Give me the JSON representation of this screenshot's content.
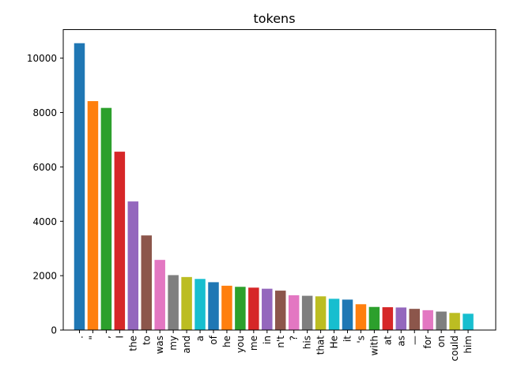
{
  "chart_data": {
    "type": "bar",
    "title": "tokens",
    "xlabel": "",
    "ylabel": "",
    "categories": [
      ".",
      "\"",
      ",",
      "I",
      "the",
      "to",
      "was",
      "my",
      "and",
      "a",
      "of",
      "he",
      "you",
      "me",
      "in",
      "n't",
      "?",
      "his",
      "that",
      "He",
      "it",
      "'s",
      "with",
      "at",
      "as",
      "—",
      "for",
      "on",
      "could",
      "him"
    ],
    "values": [
      10550,
      8420,
      8170,
      6560,
      4730,
      3480,
      2580,
      2020,
      1950,
      1880,
      1760,
      1630,
      1590,
      1560,
      1520,
      1450,
      1280,
      1260,
      1240,
      1150,
      1120,
      950,
      850,
      840,
      830,
      780,
      730,
      680,
      630,
      600
    ],
    "ylim": [
      0,
      11050
    ],
    "yticks": [
      0,
      2000,
      4000,
      6000,
      8000,
      10000
    ],
    "ytick_labels": [
      "0",
      "2000",
      "4000",
      "6000",
      "8000",
      "10000"
    ],
    "grid": false,
    "colors": [
      "#1f77b4",
      "#ff7f0e",
      "#2ca02c",
      "#d62728",
      "#9467bd",
      "#8c564b",
      "#e377c2",
      "#7f7f7f",
      "#bcbd22",
      "#17becf"
    ]
  }
}
